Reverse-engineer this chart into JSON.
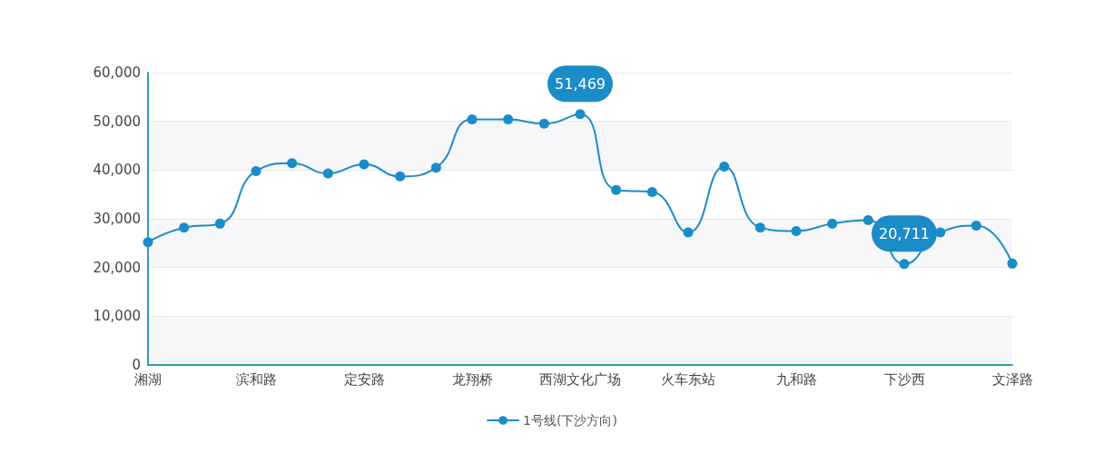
{
  "chart_data": {
    "type": "line",
    "categories": [
      "湘湖",
      null,
      null,
      "滨和路",
      null,
      null,
      "定安路",
      null,
      null,
      "龙翔桥",
      null,
      null,
      "西湖文化广场",
      null,
      null,
      "火车东站",
      null,
      null,
      "九和路",
      null,
      null,
      "下沙西",
      null,
      null,
      "文泽路"
    ],
    "series": [
      {
        "name": "1号线(下沙方向)",
        "color": "#1a8cc8",
        "values": [
          25200,
          28200,
          29000,
          39800,
          41400,
          39300,
          41200,
          38700,
          40500,
          50400,
          50400,
          49500,
          51469,
          35900,
          35500,
          27200,
          40700,
          28200,
          27500,
          29000,
          29700,
          20711,
          27200,
          28600,
          20800
        ],
        "value_labels": [
          null,
          null,
          null,
          null,
          null,
          null,
          null,
          null,
          null,
          null,
          null,
          null,
          "51,469",
          null,
          null,
          null,
          null,
          null,
          null,
          null,
          null,
          "20,711",
          null,
          null,
          null
        ]
      }
    ],
    "ylim": [
      0,
      60000
    ],
    "yticks": [
      {
        "value": 0,
        "label": "0"
      },
      {
        "value": 10000,
        "label": "10,000"
      },
      {
        "value": 20000,
        "label": "20,000"
      },
      {
        "value": 30000,
        "label": "30,000"
      },
      {
        "value": 40000,
        "label": "40,000"
      },
      {
        "value": 50000,
        "label": "50,000"
      },
      {
        "value": 60000,
        "label": "60,000"
      }
    ],
    "grid": "y",
    "legend": "bottom",
    "marker": "circle",
    "line_style": "solid"
  }
}
